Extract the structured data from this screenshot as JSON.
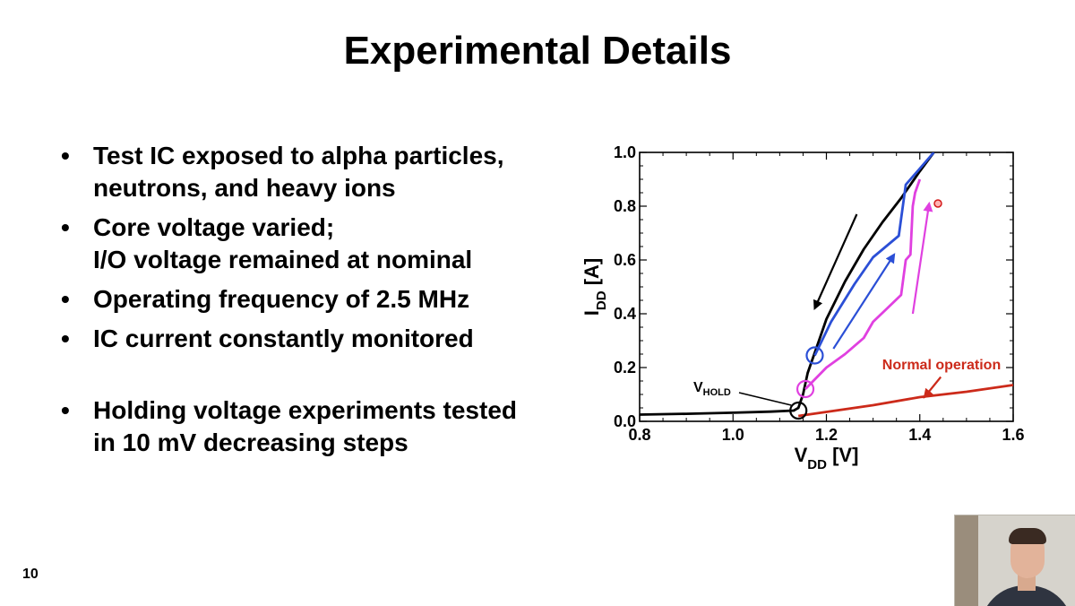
{
  "slide": {
    "title": "Experimental Details",
    "page_number": "10"
  },
  "bullets": [
    {
      "marker": "•",
      "lines": [
        "Test IC exposed to alpha particles,",
        "neutrons, and heavy ions"
      ]
    },
    {
      "marker": "•",
      "lines": [
        "Core voltage varied;",
        "I/O voltage remained at nominal"
      ]
    },
    {
      "marker": "•",
      "lines": [
        "Operating frequency of 2.5 MHz"
      ]
    },
    {
      "marker": "•",
      "lines": [
        "IC current constantly monitored"
      ]
    },
    {
      "marker": "•",
      "lines": [
        "Holding voltage experiments tested",
        "in 10 mV decreasing steps"
      ]
    }
  ],
  "chart_data": {
    "type": "line",
    "xlabel": {
      "main": "V",
      "sub": "DD",
      "unit": " [V]"
    },
    "ylabel": {
      "main": "I",
      "sub": "DD",
      "unit": " [A]"
    },
    "xlim": [
      0.8,
      1.6
    ],
    "ylim": [
      0.0,
      1.0
    ],
    "xticks": [
      "0.8",
      "1.0",
      "1.2",
      "1.4",
      "1.6"
    ],
    "yticks": [
      "0.0",
      "0.2",
      "0.4",
      "0.6",
      "0.8",
      "1.0"
    ],
    "grid": false,
    "series": [
      {
        "color": "#000000",
        "points": [
          [
            0.8,
            0.025
          ],
          [
            0.9,
            0.028
          ],
          [
            1.0,
            0.032
          ],
          [
            1.08,
            0.036
          ],
          [
            1.13,
            0.04
          ],
          [
            1.14,
            0.05
          ],
          [
            1.15,
            0.1
          ],
          [
            1.16,
            0.18
          ],
          [
            1.18,
            0.28
          ],
          [
            1.2,
            0.38
          ],
          [
            1.24,
            0.52
          ],
          [
            1.28,
            0.64
          ],
          [
            1.32,
            0.74
          ],
          [
            1.36,
            0.83
          ],
          [
            1.4,
            0.93
          ],
          [
            1.43,
            1.0
          ]
        ]
      },
      {
        "color": "#2b4fd6",
        "points": [
          [
            1.175,
            0.245
          ],
          [
            1.21,
            0.37
          ],
          [
            1.26,
            0.51
          ],
          [
            1.3,
            0.61
          ],
          [
            1.355,
            0.69
          ],
          [
            1.37,
            0.88
          ],
          [
            1.4,
            0.94
          ],
          [
            1.43,
            1.0
          ]
        ]
      },
      {
        "color": "#e040e0",
        "points": [
          [
            1.155,
            0.12
          ],
          [
            1.2,
            0.2
          ],
          [
            1.24,
            0.25
          ],
          [
            1.28,
            0.31
          ],
          [
            1.3,
            0.37
          ],
          [
            1.33,
            0.42
          ],
          [
            1.36,
            0.47
          ],
          [
            1.37,
            0.6
          ],
          [
            1.38,
            0.62
          ],
          [
            1.385,
            0.8
          ],
          [
            1.39,
            0.85
          ],
          [
            1.4,
            0.9
          ]
        ]
      },
      {
        "color": "#cc2a1a",
        "points": [
          [
            1.14,
            0.02
          ],
          [
            1.2,
            0.035
          ],
          [
            1.3,
            0.06
          ],
          [
            1.4,
            0.09
          ],
          [
            1.5,
            0.11
          ],
          [
            1.6,
            0.135
          ]
        ]
      }
    ],
    "markers": [
      {
        "x": 1.175,
        "y": 0.245,
        "color": "#2b4fd6"
      },
      {
        "x": 1.155,
        "y": 0.12,
        "color": "#e040e0"
      },
      {
        "x": 1.14,
        "y": 0.04,
        "color": "#000000"
      }
    ],
    "annotations": {
      "normal_operation": "Normal operation",
      "vhold_main": "V",
      "vhold_sub": "HOLD"
    },
    "arrows": [
      {
        "color": "#000000",
        "from": [
          1.265,
          0.77
        ],
        "to": [
          1.175,
          0.42
        ]
      },
      {
        "color": "#2b4fd6",
        "from": [
          1.215,
          0.27
        ],
        "to": [
          1.345,
          0.62
        ]
      },
      {
        "color": "#e040e0",
        "from": [
          1.385,
          0.4
        ],
        "to": [
          1.42,
          0.81
        ]
      },
      {
        "color": "#cc2a1a",
        "from": [
          1.445,
          0.165
        ],
        "to": [
          1.41,
          0.09
        ]
      }
    ],
    "colors": {
      "black": "#000000",
      "blue": "#2b4fd6",
      "magenta": "#e040e0",
      "red": "#cc2a1a"
    }
  }
}
